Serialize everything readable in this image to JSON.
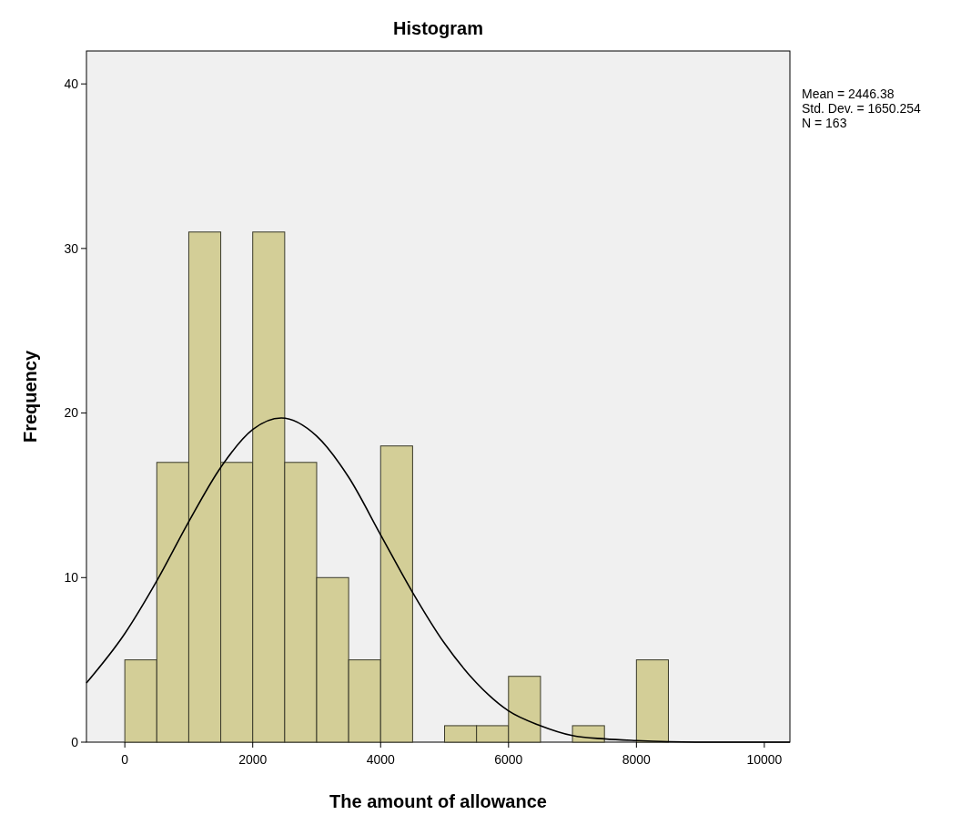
{
  "chart_data": {
    "type": "histogram",
    "title": "Histogram",
    "xlabel": "The amount of allowance",
    "ylabel": "Frequency",
    "bins": [
      0,
      500,
      1000,
      1500,
      2000,
      2500,
      3000,
      3500,
      4000,
      4500,
      5000,
      5500,
      6000,
      6500,
      7000,
      7500,
      8000,
      8500
    ],
    "values": [
      5,
      17,
      31,
      17,
      31,
      17,
      10,
      5,
      18,
      0,
      1,
      1,
      4,
      0,
      1,
      0,
      5
    ],
    "color": "#d3ce97",
    "series": [
      {
        "type": "line",
        "color": "#000000",
        "x": [
          -600,
          0,
          500,
          1000,
          1500,
          2000,
          2446,
          3000,
          3500,
          4000,
          4500,
          5000,
          5500,
          6000,
          6500,
          7000,
          7500,
          8000,
          9000,
          10400
        ],
        "values": [
          3.6,
          6.6,
          9.8,
          13.4,
          16.7,
          19.0,
          19.7,
          18.6,
          16.1,
          12.6,
          9.1,
          6.0,
          3.6,
          1.9,
          1.0,
          0.4,
          0.2,
          0.1,
          0,
          0
        ]
      }
    ],
    "xlim": [
      -600,
      10400
    ],
    "xticks": [
      0,
      2000,
      4000,
      6000,
      8000,
      10000
    ],
    "ylim": [
      0,
      42
    ],
    "yticks": [
      0,
      10,
      20,
      30,
      40
    ],
    "grid": false,
    "marker": "none",
    "line_style": "solid",
    "annotations": [
      "Mean = 2446.38",
      "Std. Dev. = 1650.254",
      "N = 163"
    ]
  }
}
